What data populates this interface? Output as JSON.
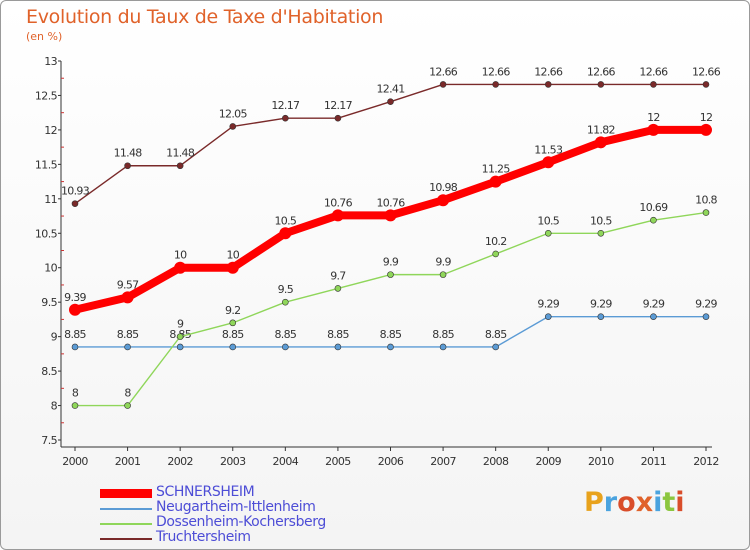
{
  "header": {
    "title": "Evolution du Taux de Taxe d'Habitation",
    "subtitle": "(en %)"
  },
  "logo": {
    "text": "Proxiti",
    "colors": [
      "#e8a21c",
      "#4aa3df",
      "#d94d2a",
      "#e0622a",
      "#4aa3df",
      "#8cc63f",
      "#d94d2a"
    ]
  },
  "chart_data": {
    "type": "line",
    "title": "Evolution du Taux de Taxe d'Habitation",
    "subtitle": "(en %)",
    "xlabel": "",
    "ylabel": "",
    "x": [
      "2000",
      "2001",
      "2002",
      "2003",
      "2004",
      "2005",
      "2006",
      "2007",
      "2008",
      "2009",
      "2010",
      "2011",
      "2012"
    ],
    "ylim": [
      7.5,
      13
    ],
    "yticks": [
      "7.5",
      "8",
      "8.5",
      "9",
      "9.5",
      "10",
      "10.5",
      "11",
      "11.5",
      "12",
      "12.5",
      "13"
    ],
    "grid": false,
    "legend_position": "bottom-left",
    "series": [
      {
        "name": "SCHNERSHEIM",
        "color": "#ff0000",
        "values": [
          9.39,
          9.57,
          10,
          10,
          10.5,
          10.76,
          10.76,
          10.98,
          11.25,
          11.53,
          11.82,
          12,
          12
        ],
        "labels": [
          "9.39",
          "9.57",
          "10",
          "10",
          "10.5",
          "10.76",
          "10.76",
          "10.98",
          "11.25",
          "11.53",
          "11.82",
          "12",
          "12"
        ]
      },
      {
        "name": "Neugartheim-Ittlenheim",
        "color": "#5b9bd5",
        "values": [
          8.85,
          8.85,
          8.85,
          8.85,
          8.85,
          8.85,
          8.85,
          8.85,
          8.85,
          9.29,
          9.29,
          9.29,
          9.29
        ],
        "labels": [
          "8.85",
          "8.85",
          "8.85",
          "8.85",
          "8.85",
          "8.85",
          "8.85",
          "8.85",
          "8.85",
          "9.29",
          "9.29",
          "9.29",
          "9.29"
        ]
      },
      {
        "name": "Dossenheim-Kochersberg",
        "color": "#8fd65a",
        "values": [
          8,
          8,
          9,
          9.2,
          9.5,
          9.7,
          9.9,
          9.9,
          10.2,
          10.5,
          10.5,
          10.69,
          10.8
        ],
        "labels": [
          "8",
          "8",
          "9",
          "9.2",
          "9.5",
          "9.7",
          "9.9",
          "9.9",
          "10.2",
          "10.5",
          "10.5",
          "10.69",
          "10.8"
        ]
      },
      {
        "name": "Truchtersheim",
        "color": "#7a2a2a",
        "values": [
          10.93,
          11.48,
          11.48,
          12.05,
          12.17,
          12.17,
          12.41,
          12.66,
          12.66,
          12.66,
          12.66,
          12.66,
          12.66
        ],
        "labels": [
          "10.93",
          "11.48",
          "11.48",
          "12.05",
          "12.17",
          "12.17",
          "12.41",
          "12.66",
          "12.66",
          "12.66",
          "12.66",
          "12.66",
          "12.66"
        ]
      }
    ]
  }
}
